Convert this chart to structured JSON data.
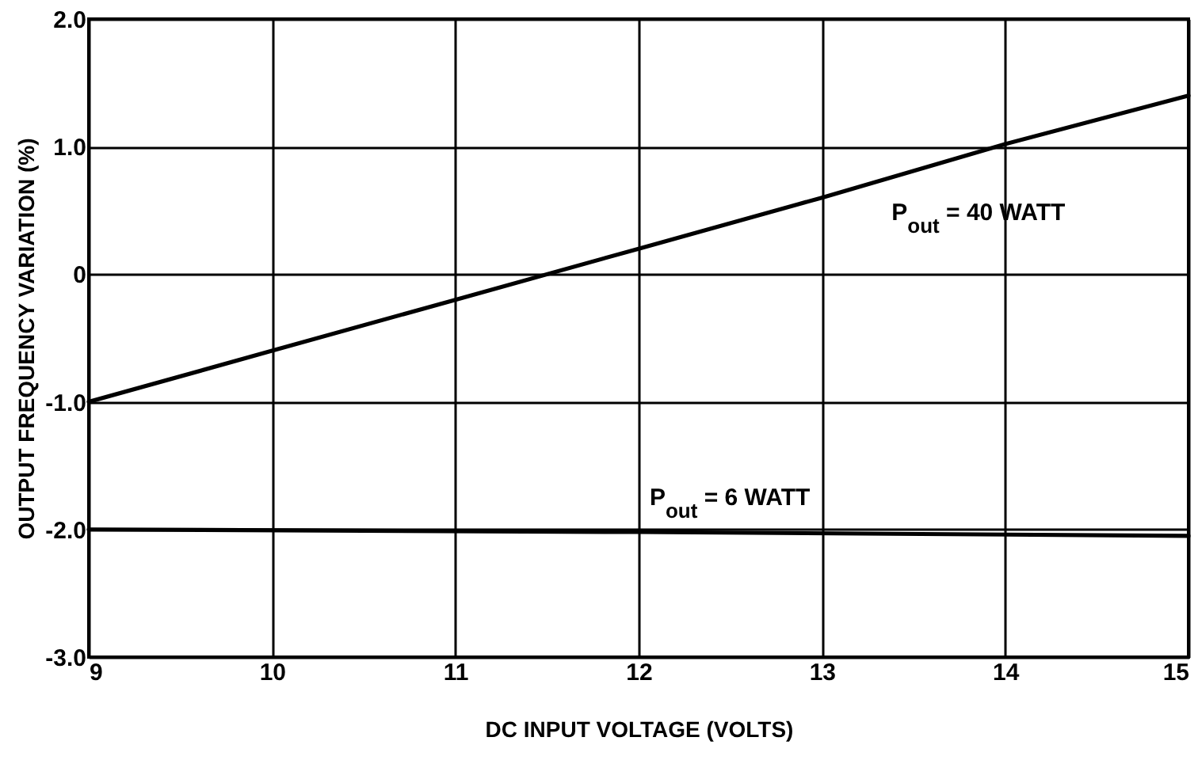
{
  "chart_data": {
    "type": "line",
    "xlabel": "DC INPUT VOLTAGE (VOLTS)",
    "ylabel": "OUTPUT FREQUENCY VARIATION (%)",
    "series": [
      {
        "color": "#000000",
        "x": [
          9,
          10,
          11,
          12,
          13,
          14,
          15
        ],
        "values": [
          -1.0,
          -0.6,
          -0.2,
          0.2,
          0.6,
          1.02,
          1.4
        ]
      },
      {
        "color": "#000000",
        "x": [
          9,
          12,
          15
        ],
        "values": [
          -2.0,
          -2.02,
          -2.05
        ]
      }
    ],
    "annotations": [
      "P$_{out}$ = 40 WATT",
      "P$_{out}$ = 6 WATT"
    ],
    "xlim": [
      9,
      15
    ],
    "xticks": [
      9,
      10,
      11,
      12,
      13,
      14,
      15
    ],
    "ylim": [
      -3,
      2
    ],
    "yticks": [
      {
        "value": 2,
        "label": "2.0"
      },
      {
        "value": 1,
        "label": "1.0"
      },
      0,
      {
        "value": -1,
        "label": "-1.0"
      },
      {
        "value": -2,
        "label": "-2.0"
      },
      {
        "value": -3,
        "label": "-3.0"
      }
    ],
    "grid": true,
    "marker": "none",
    "line_style": "solid"
  }
}
